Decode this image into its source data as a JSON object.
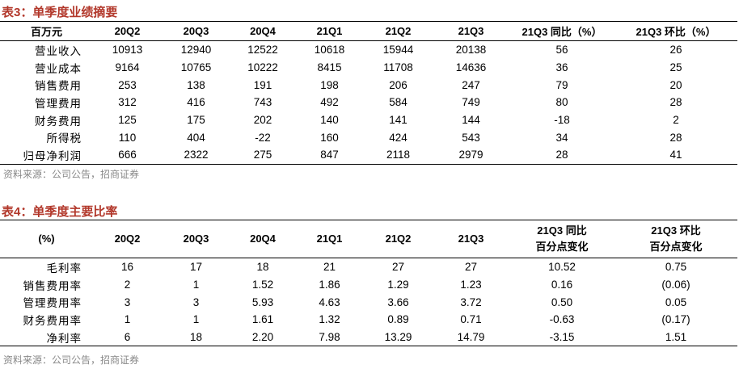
{
  "table1": {
    "title": "表3：单季度业绩摘要",
    "header": [
      [
        "百万元"
      ],
      [
        "20Q2"
      ],
      [
        "20Q3"
      ],
      [
        "20Q4"
      ],
      [
        "21Q1"
      ],
      [
        "21Q2"
      ],
      [
        "21Q3"
      ],
      [
        "21Q3 同比（%）"
      ],
      [
        "21Q3 环比（%）"
      ]
    ],
    "rows": [
      [
        "营业收入",
        "10913",
        "12940",
        "12522",
        "10618",
        "15944",
        "20138",
        "56",
        "26"
      ],
      [
        "营业成本",
        "9164",
        "10765",
        "10222",
        "8415",
        "11708",
        "14636",
        "36",
        "25"
      ],
      [
        "销售费用",
        "253",
        "138",
        "191",
        "198",
        "206",
        "247",
        "79",
        "20"
      ],
      [
        "管理费用",
        "312",
        "416",
        "743",
        "492",
        "584",
        "749",
        "80",
        "28"
      ],
      [
        "财务费用",
        "125",
        "175",
        "202",
        "140",
        "141",
        "144",
        "-18",
        "2"
      ],
      [
        "所得税",
        "110",
        "404",
        "-22",
        "160",
        "424",
        "543",
        "34",
        "28"
      ],
      [
        "归母净利润",
        "666",
        "2322",
        "275",
        "847",
        "2118",
        "2979",
        "28",
        "41"
      ]
    ],
    "source": "资料来源：公司公告，招商证券"
  },
  "table2": {
    "title": "表4：单季度主要比率",
    "header": [
      [
        "(%)"
      ],
      [
        "20Q2"
      ],
      [
        "20Q3"
      ],
      [
        "20Q4"
      ],
      [
        "21Q1"
      ],
      [
        "21Q2"
      ],
      [
        "21Q3"
      ],
      [
        "21Q3 同比",
        "百分点变化"
      ],
      [
        "21Q3 环比",
        "百分点变化"
      ]
    ],
    "rows": [
      [
        "毛利率",
        "16",
        "17",
        "18",
        "21",
        "27",
        "27",
        "10.52",
        "0.75"
      ],
      [
        "销售费用率",
        "2",
        "1",
        "1.52",
        "1.86",
        "1.29",
        "1.23",
        "0.16",
        "(0.06)"
      ],
      [
        "管理费用率",
        "3",
        "3",
        "5.93",
        "4.63",
        "3.66",
        "3.72",
        "0.50",
        "0.05"
      ],
      [
        "财务费用率",
        "1",
        "1",
        "1.61",
        "1.32",
        "0.89",
        "0.71",
        "-0.63",
        "(0.17)"
      ],
      [
        "净利率",
        "6",
        "18",
        "2.20",
        "7.98",
        "13.29",
        "14.79",
        "-3.15",
        "1.51"
      ]
    ],
    "source": "资料来源：公司公告，招商证券"
  }
}
